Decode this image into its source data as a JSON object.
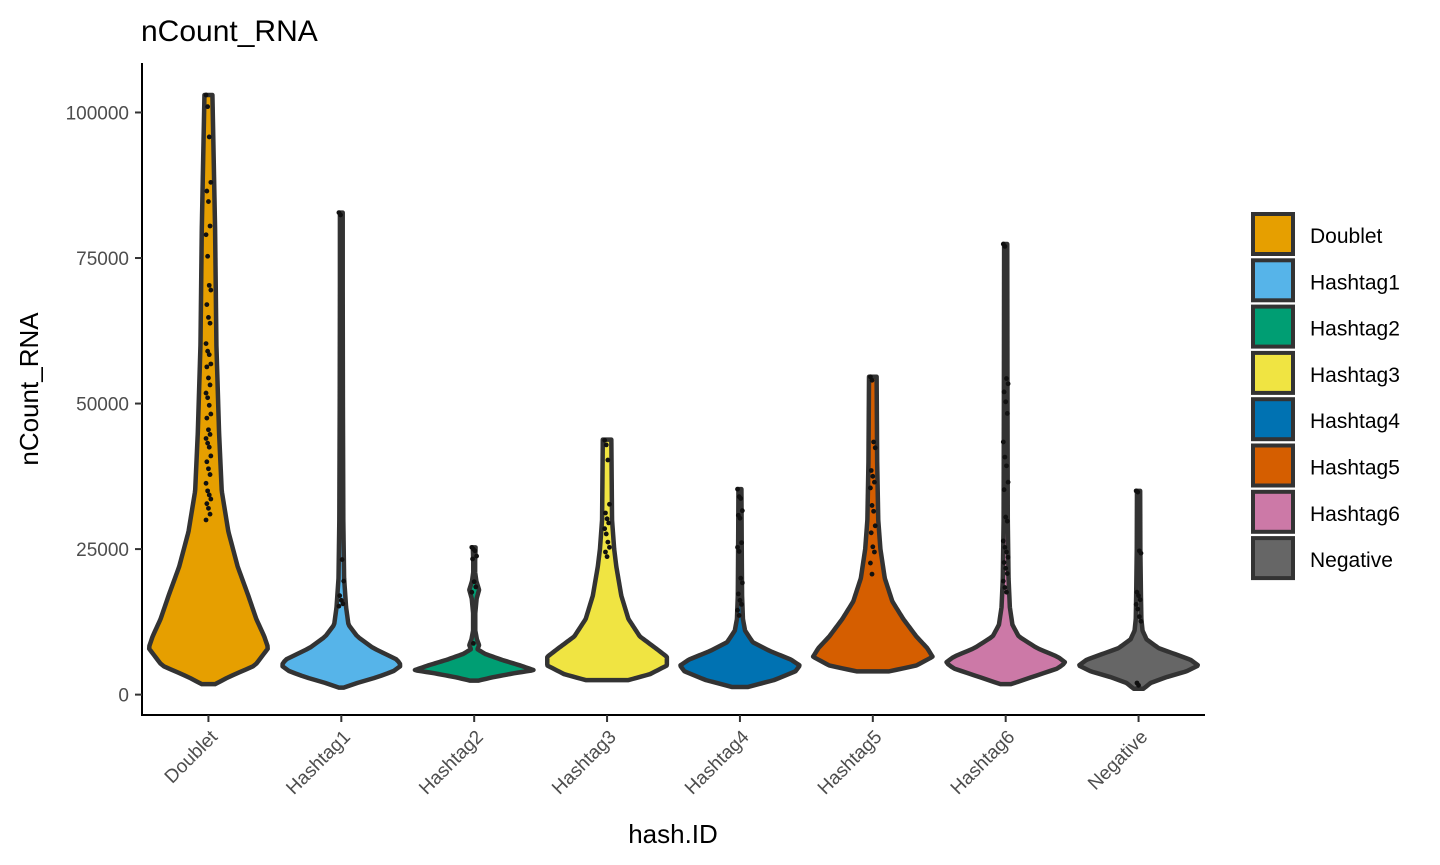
{
  "chart_data": {
    "type": "violin",
    "title": "nCount_RNA",
    "xlabel": "hash.ID",
    "ylabel": "nCount_RNA",
    "ylim": [
      -3500,
      108500
    ],
    "yticks": [
      0,
      25000,
      50000,
      75000,
      100000
    ],
    "ytick_labels": [
      "0",
      "25000",
      "50000",
      "75000",
      "100000"
    ],
    "categories": [
      "Doublet",
      "Hashtag1",
      "Hashtag2",
      "Hashtag3",
      "Hashtag4",
      "Hashtag5",
      "Hashtag6",
      "Negative"
    ],
    "colors": [
      "#E69F00",
      "#56B4E9",
      "#009E73",
      "#F0E442",
      "#0072B2",
      "#D55E00",
      "#CC79A7",
      "#666666"
    ],
    "legend_position": "right",
    "grid": false,
    "series": [
      {
        "name": "Doublet",
        "min": 1800,
        "max": 103000,
        "density": [
          [
            1800,
            0.5
          ],
          [
            3000,
            1.5
          ],
          [
            5000,
            3.5
          ],
          [
            8000,
            4.5
          ],
          [
            10000,
            4.2
          ],
          [
            13000,
            3.6
          ],
          [
            17000,
            3.0
          ],
          [
            22000,
            2.2
          ],
          [
            28000,
            1.5
          ],
          [
            35000,
            1
          ],
          [
            45000,
            0.8
          ],
          [
            60000,
            0.6
          ],
          [
            80000,
            0.5
          ],
          [
            103000,
            0.3
          ]
        ],
        "points": [
          103000,
          101000,
          95800,
          88000,
          86500,
          84700,
          80500,
          79000,
          75300,
          70300,
          69500,
          67000,
          64800,
          63800,
          60300,
          59000,
          58400,
          56800,
          56300,
          54400,
          53200,
          51800,
          51000,
          49700,
          48200,
          47500,
          45500,
          44700,
          44000,
          43200,
          42500,
          41000,
          40000,
          38800,
          37800,
          36300,
          35000,
          34300,
          33600,
          32800,
          32000,
          31000,
          30000
        ]
      },
      {
        "name": "Hashtag1",
        "min": 1200,
        "max": 82800,
        "density": [
          [
            1200,
            0.6
          ],
          [
            2000,
            4
          ],
          [
            3000,
            9
          ],
          [
            4000,
            13
          ],
          [
            5000,
            15
          ],
          [
            6000,
            14
          ],
          [
            7000,
            11
          ],
          [
            8000,
            8
          ],
          [
            10000,
            4
          ],
          [
            12000,
            1.8
          ],
          [
            15000,
            1.2
          ],
          [
            20000,
            0.7
          ],
          [
            30000,
            0.5
          ],
          [
            50000,
            0.4
          ],
          [
            70000,
            0.35
          ],
          [
            82800,
            0.35
          ]
        ],
        "points": [
          82800,
          82400,
          23200,
          19500,
          17000,
          16200,
          15600,
          15200
        ]
      },
      {
        "name": "Hashtag2",
        "min": 2400,
        "max": 25300,
        "density": [
          [
            2400,
            1.5
          ],
          [
            3000,
            7
          ],
          [
            3700,
            15
          ],
          [
            4200,
            22
          ],
          [
            5000,
            17
          ],
          [
            6000,
            10
          ],
          [
            7000,
            4
          ],
          [
            7800,
            1.2
          ],
          [
            8500,
            1.8
          ],
          [
            9500,
            1
          ],
          [
            11000,
            0.4
          ],
          [
            14000,
            0.4
          ],
          [
            16500,
            0.9
          ],
          [
            18000,
            1.8
          ],
          [
            19500,
            0.8
          ],
          [
            21000,
            0.35
          ],
          [
            23000,
            0.35
          ],
          [
            25300,
            0.5
          ]
        ],
        "points": [
          25300,
          25000,
          24700,
          23800,
          23300,
          19400,
          18500,
          17600,
          8800
        ]
      },
      {
        "name": "Hashtag3",
        "min": 2500,
        "max": 43800,
        "density": [
          [
            2500,
            1.5
          ],
          [
            3500,
            3
          ],
          [
            5000,
            4.2
          ],
          [
            6500,
            4.2
          ],
          [
            8000,
            3.4
          ],
          [
            10000,
            2.3
          ],
          [
            13000,
            1.5
          ],
          [
            17000,
            1
          ],
          [
            22000,
            0.65
          ],
          [
            25000,
            0.5
          ],
          [
            30000,
            0.35
          ],
          [
            43800,
            0.3
          ]
        ],
        "points": [
          43700,
          42900,
          40300,
          32700,
          31200,
          30200,
          29500,
          28500,
          27600,
          26200,
          25300,
          24500,
          23700
        ]
      },
      {
        "name": "Hashtag4",
        "min": 1300,
        "max": 35300,
        "density": [
          [
            1300,
            1.8
          ],
          [
            2500,
            8
          ],
          [
            4000,
            13
          ],
          [
            5000,
            14
          ],
          [
            6000,
            12
          ],
          [
            7500,
            7
          ],
          [
            9000,
            3
          ],
          [
            11000,
            1.2
          ],
          [
            13000,
            0.7
          ],
          [
            17000,
            0.5
          ],
          [
            22000,
            0.45
          ],
          [
            28000,
            0.4
          ],
          [
            35300,
            0.35
          ]
        ],
        "points": [
          35300,
          34000,
          33700,
          31600,
          30800,
          30300,
          26100,
          25300,
          24600,
          20000,
          19200,
          17300,
          16200,
          15500,
          14500,
          13600
        ]
      },
      {
        "name": "Hashtag5",
        "min": 4000,
        "max": 54600,
        "density": [
          [
            4000,
            1.5
          ],
          [
            5000,
            4
          ],
          [
            6500,
            5.5
          ],
          [
            8000,
            5
          ],
          [
            10000,
            4
          ],
          [
            13000,
            2.8
          ],
          [
            16000,
            1.8
          ],
          [
            20000,
            1.1
          ],
          [
            25000,
            0.7
          ],
          [
            30000,
            0.5
          ],
          [
            40000,
            0.4
          ],
          [
            54600,
            0.35
          ]
        ],
        "points": [
          54600,
          54000,
          43400,
          42400,
          38500,
          37500,
          36500,
          35500,
          32500,
          31500,
          29000,
          27800,
          25400,
          24500,
          22600,
          20700
        ]
      },
      {
        "name": "Hashtag6",
        "min": 1800,
        "max": 77400,
        "density": [
          [
            1800,
            1
          ],
          [
            3000,
            5
          ],
          [
            4500,
            10
          ],
          [
            5500,
            11.5
          ],
          [
            6500,
            10
          ],
          [
            8000,
            6
          ],
          [
            10000,
            2.5
          ],
          [
            12000,
            1.3
          ],
          [
            15000,
            0.8
          ],
          [
            20000,
            0.55
          ],
          [
            30000,
            0.4
          ],
          [
            50000,
            0.35
          ],
          [
            77400,
            0.3
          ]
        ],
        "points": [
          77400,
          77000,
          54300,
          53400,
          52000,
          50300,
          48300,
          43400,
          40800,
          39300,
          36500,
          35200,
          30500,
          29800,
          26400,
          25300,
          24500,
          23600,
          22700,
          21700,
          20800,
          19500,
          18400,
          17600
        ]
      },
      {
        "name": "Negative",
        "min": 1000,
        "max": 35000,
        "density": [
          [
            1000,
            1.2
          ],
          [
            2000,
            3
          ],
          [
            3000,
            7
          ],
          [
            4000,
            12
          ],
          [
            5000,
            15
          ],
          [
            6000,
            13
          ],
          [
            7000,
            9
          ],
          [
            8000,
            5
          ],
          [
            9500,
            2
          ],
          [
            11000,
            1
          ],
          [
            13000,
            0.7
          ],
          [
            17000,
            0.6
          ],
          [
            25000,
            0.45
          ],
          [
            35000,
            0.4
          ]
        ],
        "points": [
          35000,
          34800,
          24700,
          24300,
          17600,
          17000,
          16300,
          15500,
          14700,
          13400,
          12600,
          2000,
          1600
        ]
      }
    ]
  }
}
